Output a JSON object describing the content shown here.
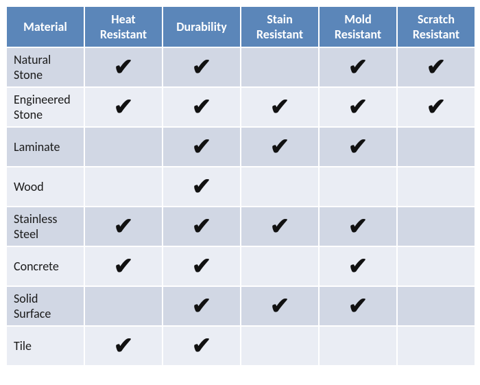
{
  "table": {
    "header_bg": "#5b86b9",
    "header_fg": "#ffffff",
    "header_fontsize": "18px",
    "row_label_fontsize": "18px",
    "check_fontsize": "34px",
    "check_glyph": "✔",
    "row_odd_bg": "#d1d7e4",
    "row_even_bg": "#eaedf4",
    "cell_border_color": "#ffffff",
    "col_widths": [
      "114px",
      "114px",
      "114px",
      "114px",
      "114px",
      "114px"
    ],
    "columns": [
      "Material",
      "Heat Resistant",
      "Durability",
      "Stain Resistant",
      "Mold Resistant",
      "Scratch Resistant"
    ],
    "rows": [
      {
        "label": "Natural Stone",
        "checks": [
          true,
          true,
          false,
          true,
          true
        ]
      },
      {
        "label": "Engineered Stone",
        "checks": [
          true,
          true,
          true,
          true,
          true
        ]
      },
      {
        "label": "Laminate",
        "checks": [
          false,
          true,
          true,
          true,
          false
        ]
      },
      {
        "label": "Wood",
        "checks": [
          false,
          true,
          false,
          false,
          false
        ]
      },
      {
        "label": "Stainless Steel",
        "checks": [
          true,
          true,
          true,
          true,
          false
        ]
      },
      {
        "label": "Concrete",
        "checks": [
          true,
          true,
          false,
          true,
          false
        ]
      },
      {
        "label": "Solid Surface",
        "checks": [
          false,
          true,
          true,
          true,
          false
        ]
      },
      {
        "label": "Tile",
        "checks": [
          true,
          true,
          false,
          false,
          false
        ]
      }
    ]
  }
}
